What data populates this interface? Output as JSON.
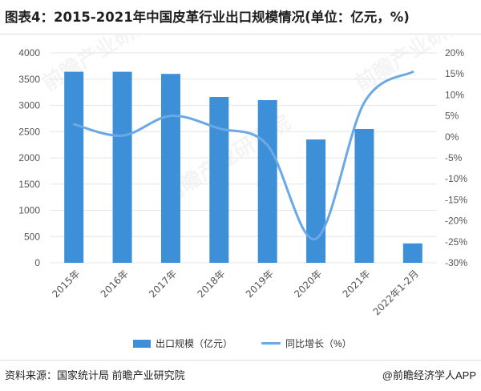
{
  "title": "图表4：2015-2021年中国皮革行业出口规模情况(单位：亿元，%)",
  "source": "资料来源：国家统计局 前瞻产业研究院",
  "credit": "@前瞻经济学人APP",
  "watermark": "前瞻产业研究院",
  "colors": {
    "bar": "#3d8fd8",
    "line": "#6aa9e6",
    "grid": "#e6e6e6",
    "axis_text": "#555555"
  },
  "chart_data": {
    "type": "bar",
    "categories": [
      "2015年",
      "2016年",
      "2017年",
      "2018年",
      "2019年",
      "2020年",
      "2021年",
      "2022年1-2月"
    ],
    "series": [
      {
        "name": "出口规模（亿元）",
        "type": "bar",
        "axis": "left",
        "values": [
          3640,
          3640,
          3600,
          3160,
          3100,
          2350,
          2550,
          370
        ]
      },
      {
        "name": "同比增长（%）",
        "type": "line",
        "axis": "right",
        "smooth": true,
        "values": [
          3.0,
          0.3,
          5.0,
          2.0,
          -2.0,
          -24.3,
          8.2,
          15.5
        ]
      }
    ],
    "y_left": {
      "min": 0,
      "max": 4000,
      "ticks": [
        "0",
        "500",
        "1000",
        "1500",
        "2000",
        "2500",
        "3000",
        "3500",
        "4000"
      ]
    },
    "y_right": {
      "min": -30,
      "max": 20,
      "ticks": [
        "-30%",
        "-25%",
        "-20%",
        "-15%",
        "-10%",
        "-5%",
        "0%",
        "5%",
        "10%",
        "15%",
        "20%"
      ]
    },
    "grid": true,
    "legend_position": "bottom"
  }
}
